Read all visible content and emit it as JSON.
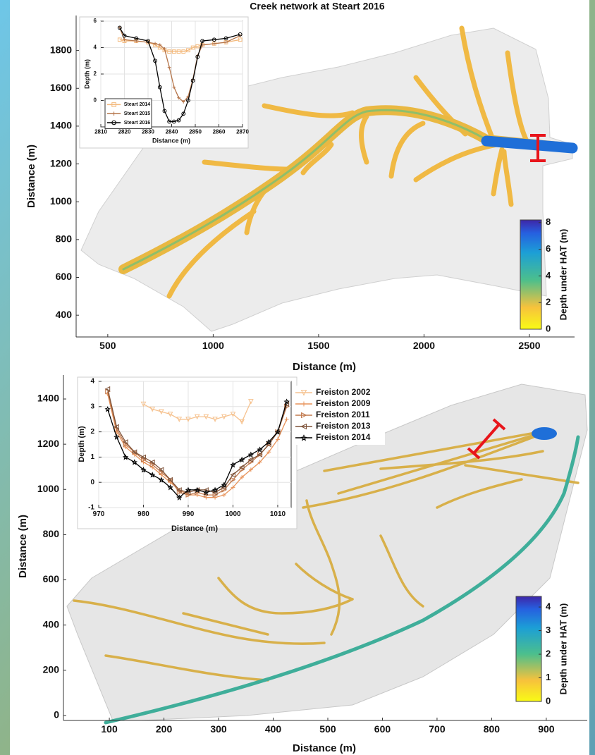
{
  "chart_data": [
    {
      "type": "map",
      "title": "Creek network at Steart 2016",
      "x_label": "Distance (m)",
      "y_label": "Distance (m)",
      "xlim": [
        350,
        2714
      ],
      "xticks": [
        500,
        1000,
        1500,
        2000,
        2500
      ],
      "ylim": [
        285,
        1985
      ],
      "yticks": [
        400,
        600,
        800,
        1000,
        1200,
        1400,
        1600,
        1800
      ],
      "colorbar": {
        "label": "Depth under HAT (m)",
        "lim": [
          0,
          8.2
        ],
        "ticks": [
          0,
          2,
          4,
          6,
          8
        ]
      }
    },
    {
      "type": "line",
      "x_label": "Distance (m)",
      "y_label": "Depth (m)",
      "grid": true,
      "legend": "lower left",
      "xlim": [
        2810,
        2870
      ],
      "xticks": [
        2810,
        2820,
        2830,
        2840,
        2850,
        2860,
        2870
      ],
      "ylim": [
        -2,
        6
      ],
      "yticks": [
        0,
        2,
        4,
        6
      ],
      "x": [
        2818,
        2820,
        2825,
        2830,
        2833,
        2835,
        2837,
        2839,
        2841,
        2843,
        2845,
        2847,
        2849,
        2851,
        2853,
        2858,
        2863,
        2869
      ],
      "series": [
        {
          "name": "Steart 2014",
          "color": "#f3b97c",
          "marker": "square",
          "values": [
            4.6,
            4.5,
            4.5,
            4.4,
            4.2,
            4.0,
            3.8,
            3.7,
            3.7,
            3.7,
            3.7,
            3.8,
            4.0,
            4.1,
            4.2,
            4.3,
            4.4,
            4.6
          ]
        },
        {
          "name": "Steart 2015",
          "color": "#b5754a",
          "marker": "plus",
          "values": [
            5.5,
            4.6,
            4.5,
            4.4,
            4.3,
            4.2,
            3.9,
            2.5,
            1.0,
            0.2,
            -0.1,
            0.3,
            1.6,
            3.4,
            4.2,
            4.3,
            4.4,
            4.9
          ]
        },
        {
          "name": "Steart 2016",
          "color": "#000000",
          "marker": "circle",
          "values": [
            5.5,
            4.9,
            4.7,
            4.5,
            3.0,
            1.0,
            -0.8,
            -1.6,
            -1.6,
            -1.5,
            -1.0,
            0.0,
            1.5,
            3.3,
            4.5,
            4.6,
            4.7,
            5.0
          ]
        }
      ]
    },
    {
      "type": "map",
      "x_label": "Distance (m)",
      "y_label": "Distance (m)",
      "xlim": [
        16,
        975
      ],
      "xticks": [
        100,
        200,
        300,
        400,
        500,
        600,
        700,
        800,
        900
      ],
      "ylim": [
        -22,
        1506
      ],
      "yticks": [
        0,
        200,
        400,
        600,
        800,
        1000,
        1200,
        1400
      ],
      "colorbar": {
        "label": "Depth under HAT (m)",
        "lim": [
          0,
          4.45
        ],
        "ticks": [
          0,
          1,
          2,
          3,
          4
        ]
      }
    },
    {
      "type": "line",
      "x_label": "Distance (m)",
      "y_label": "Depth (m)",
      "grid": true,
      "legend": "outside right",
      "xlim": [
        970,
        1013
      ],
      "xticks": [
        970,
        980,
        990,
        1000,
        1010
      ],
      "ylim": [
        -1,
        4
      ],
      "yticks": [
        -1,
        0,
        1,
        2,
        3,
        4
      ],
      "x": [
        972,
        974,
        976,
        978,
        980,
        982,
        984,
        986,
        988,
        990,
        992,
        994,
        996,
        998,
        1000,
        1002,
        1004,
        1006,
        1008,
        1010,
        1012
      ],
      "series": [
        {
          "name": "Freiston 2002",
          "color": "#f6c28f",
          "marker": "triangle-down",
          "values": [
            null,
            null,
            null,
            null,
            3.1,
            2.9,
            2.8,
            2.7,
            2.5,
            2.5,
            2.6,
            2.6,
            2.5,
            2.6,
            2.7,
            2.4,
            3.2,
            null,
            null,
            null,
            null
          ]
        },
        {
          "name": "Freiston 2009",
          "color": "#e8935a",
          "marker": "plus",
          "values": [
            3.5,
            2.0,
            1.4,
            1.1,
            0.8,
            0.6,
            0.3,
            0.0,
            -0.3,
            -0.5,
            -0.5,
            -0.6,
            -0.6,
            -0.5,
            -0.2,
            0.2,
            0.5,
            0.8,
            1.2,
            1.7,
            2.5
          ]
        },
        {
          "name": "Freiston 2011",
          "color": "#c27a4e",
          "marker": "triangle-right",
          "values": [
            3.6,
            2.1,
            1.5,
            1.2,
            0.9,
            0.7,
            0.4,
            0.1,
            -0.4,
            -0.5,
            -0.4,
            -0.5,
            -0.5,
            -0.3,
            0.1,
            0.5,
            0.8,
            1.1,
            1.5,
            2.0,
            3.0
          ]
        },
        {
          "name": "Freiston 2013",
          "color": "#7e5238",
          "marker": "triangle-left",
          "values": [
            3.7,
            2.2,
            1.6,
            1.2,
            1.0,
            0.8,
            0.5,
            0.1,
            -0.3,
            -0.4,
            -0.3,
            -0.3,
            -0.4,
            -0.2,
            0.3,
            0.6,
            0.9,
            1.1,
            1.5,
            2.0,
            3.1
          ]
        },
        {
          "name": "Freiston 2014",
          "color": "#000000",
          "marker": "star",
          "values": [
            2.9,
            1.8,
            1.0,
            0.8,
            0.5,
            0.3,
            0.1,
            -0.2,
            -0.6,
            -0.3,
            -0.3,
            -0.4,
            -0.3,
            -0.1,
            0.7,
            0.9,
            1.1,
            1.3,
            1.6,
            2.0,
            3.2
          ]
        }
      ]
    }
  ]
}
